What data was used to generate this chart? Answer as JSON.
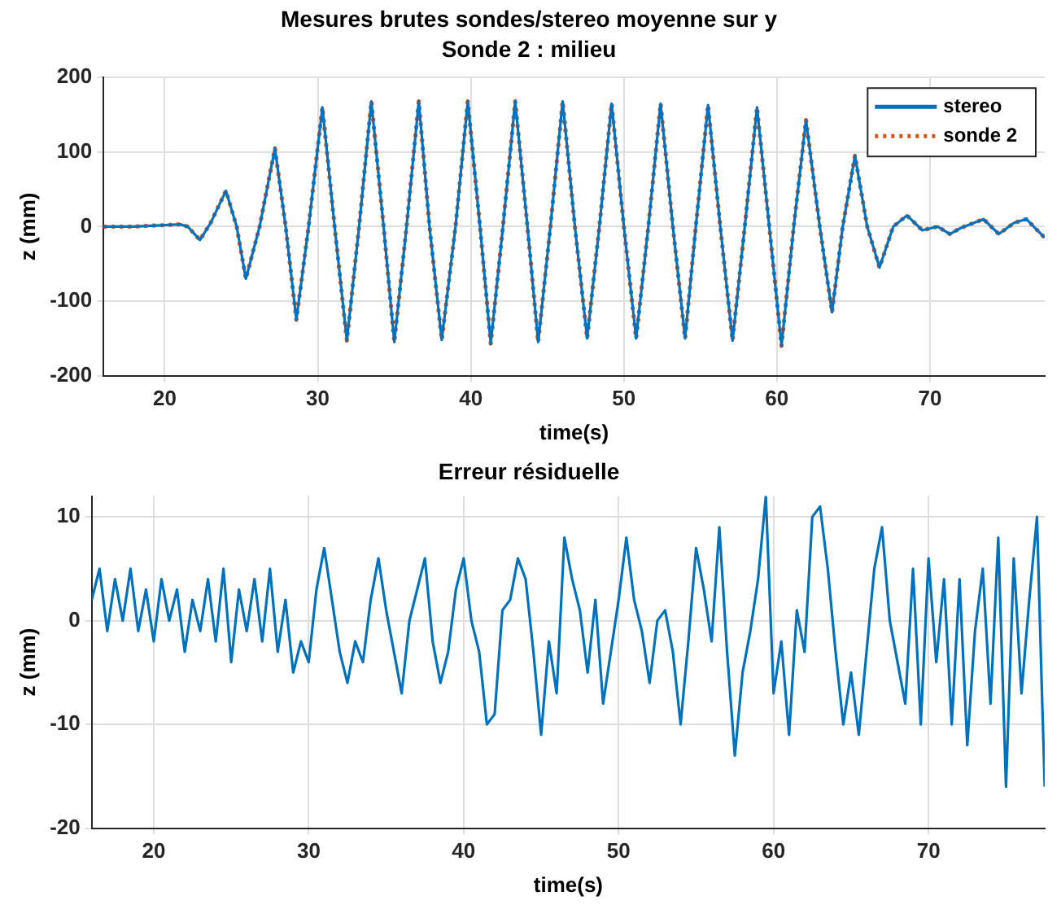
{
  "chart_data": [
    {
      "type": "line",
      "title": "Mesures brutes sondes/stereo moyenne sur y",
      "subtitle": "Sonde 2 : milieu",
      "xlabel": "time(s)",
      "ylabel": "z (mm)",
      "x": [
        16,
        18,
        20,
        21,
        21.5,
        22.3,
        23,
        24,
        24.7,
        25.3,
        26.2,
        27.2,
        27.9,
        28.6,
        29.4,
        30.3,
        31.1,
        31.9,
        32.7,
        33.5,
        34.3,
        35,
        35.8,
        36.6,
        37.3,
        38.1,
        39,
        39.8,
        40.6,
        41.3,
        42.1,
        42.9,
        43.7,
        44.4,
        45.2,
        46,
        46.8,
        47.6,
        48.4,
        49.2,
        50,
        50.8,
        51.6,
        52.4,
        53.2,
        54,
        54.7,
        55.5,
        56.3,
        57.1,
        57.9,
        58.7,
        59.5,
        60.3,
        61.1,
        61.9,
        62.8,
        63.6,
        64.3,
        65.1,
        65.9,
        66.7,
        67.6,
        68.5,
        69.5,
        70.5,
        71.3,
        72,
        73.5,
        74.5,
        75.5,
        76.3,
        77.5
      ],
      "series": [
        {
          "name": "stereo",
          "color": "#0072bd",
          "line_style": "solid",
          "values": [
            0,
            0,
            2,
            3,
            0,
            -18,
            5,
            48,
            0,
            -70,
            0,
            105,
            0,
            -125,
            0,
            160,
            0,
            -153,
            0,
            168,
            0,
            -155,
            0,
            168,
            0,
            -152,
            0,
            168,
            0,
            -157,
            0,
            168,
            0,
            -155,
            0,
            168,
            0,
            -150,
            0,
            165,
            0,
            -150,
            0,
            165,
            0,
            -150,
            0,
            163,
            0,
            -153,
            0,
            160,
            0,
            -160,
            0,
            143,
            0,
            -115,
            0,
            95,
            0,
            -55,
            0,
            15,
            -5,
            0,
            -10,
            -2,
            10,
            -10,
            5,
            10,
            -15
          ]
        },
        {
          "name": "sonde 2",
          "color": "#d95319",
          "line_style": "dotted",
          "values": [
            0,
            0,
            2,
            3,
            0,
            -18,
            5,
            48,
            0,
            -70,
            0,
            105,
            0,
            -125,
            0,
            160,
            0,
            -153,
            0,
            168,
            0,
            -155,
            0,
            168,
            0,
            -152,
            0,
            168,
            0,
            -157,
            0,
            168,
            0,
            -155,
            0,
            168,
            0,
            -150,
            0,
            165,
            0,
            -150,
            0,
            165,
            0,
            -150,
            0,
            163,
            0,
            -153,
            0,
            160,
            0,
            -160,
            0,
            143,
            0,
            -115,
            0,
            95,
            0,
            -55,
            0,
            15,
            -5,
            0,
            -10,
            -2,
            10,
            -10,
            5,
            10,
            -15
          ]
        }
      ],
      "xlim": [
        16,
        77.5
      ],
      "xticks": [
        20,
        30,
        40,
        50,
        60,
        70
      ],
      "ylim": [
        -200,
        200
      ],
      "yticks": [
        -200,
        -100,
        0,
        100,
        200
      ],
      "grid": true,
      "legend": "top right",
      "marker": "none"
    },
    {
      "type": "line",
      "title": "Erreur résiduelle",
      "xlabel": "time(s)",
      "ylabel": "z (mm)",
      "x": [
        16,
        16.5,
        17,
        17.5,
        18,
        18.5,
        19,
        19.5,
        20,
        20.5,
        21,
        21.5,
        22,
        22.5,
        23,
        23.5,
        24,
        24.5,
        25,
        25.5,
        26,
        26.5,
        27,
        27.5,
        28,
        28.5,
        29,
        29.5,
        30,
        30.5,
        31,
        31.5,
        32,
        32.5,
        33,
        33.5,
        34,
        34.5,
        35,
        35.5,
        36,
        36.5,
        37,
        37.5,
        38,
        38.5,
        39,
        39.5,
        40,
        40.5,
        41,
        41.5,
        42,
        42.5,
        43,
        43.5,
        44,
        44.5,
        45,
        45.5,
        46,
        46.5,
        47,
        47.5,
        48,
        48.5,
        49,
        49.5,
        50,
        50.5,
        51,
        51.5,
        52,
        52.5,
        53,
        53.5,
        54,
        54.5,
        55,
        55.5,
        56,
        56.5,
        57,
        57.5,
        58,
        58.5,
        59,
        59.5,
        60,
        60.5,
        61,
        61.5,
        62,
        62.5,
        63,
        63.5,
        64,
        64.5,
        65,
        65.5,
        66,
        66.5,
        67,
        67.5,
        68,
        68.5,
        69,
        69.5,
        70,
        70.5,
        71,
        71.5,
        72,
        72.5,
        73,
        73.5,
        74,
        74.5,
        75,
        75.5,
        76,
        76.5,
        77,
        77.3,
        77.5
      ],
      "series": [
        {
          "color": "#0072bd",
          "line_style": "solid",
          "values": [
            2,
            5,
            -1,
            4,
            0,
            5,
            -1,
            3,
            -2,
            4,
            0,
            3,
            -3,
            2,
            -1,
            4,
            -2,
            5,
            -4,
            3,
            -1,
            4,
            -2,
            5,
            -3,
            2,
            -5,
            -2,
            -4,
            3,
            7,
            2,
            -3,
            -6,
            -2,
            -4,
            2,
            6,
            1,
            -3,
            -7,
            0,
            3,
            6,
            -2,
            -6,
            -3,
            3,
            6,
            0,
            -3,
            -10,
            -9,
            1,
            2,
            6,
            4,
            -3,
            -11,
            -2,
            -7,
            8,
            4,
            1,
            -5,
            2,
            -8,
            -3,
            2,
            8,
            2,
            -1,
            -6,
            0,
            1,
            -3,
            -10,
            -2,
            7,
            3,
            -2,
            9,
            -3,
            -13,
            -5,
            -1,
            4,
            12,
            -7,
            -2,
            -11,
            1,
            -3,
            10,
            11,
            5,
            -3,
            -10,
            -5,
            -11,
            -3,
            5,
            9,
            0,
            -4,
            -8,
            5,
            -10,
            6,
            -4,
            4,
            -10,
            4,
            -12,
            -1,
            5,
            -8,
            8,
            -16,
            6,
            -7,
            2,
            10,
            -6,
            -16
          ]
        }
      ],
      "xlim": [
        16,
        77.5
      ],
      "xticks": [
        20,
        30,
        40,
        50,
        60,
        70
      ],
      "ylim": [
        -20,
        12
      ],
      "yticks": [
        -20,
        -10,
        0,
        10
      ],
      "grid": true,
      "marker": "none"
    }
  ]
}
